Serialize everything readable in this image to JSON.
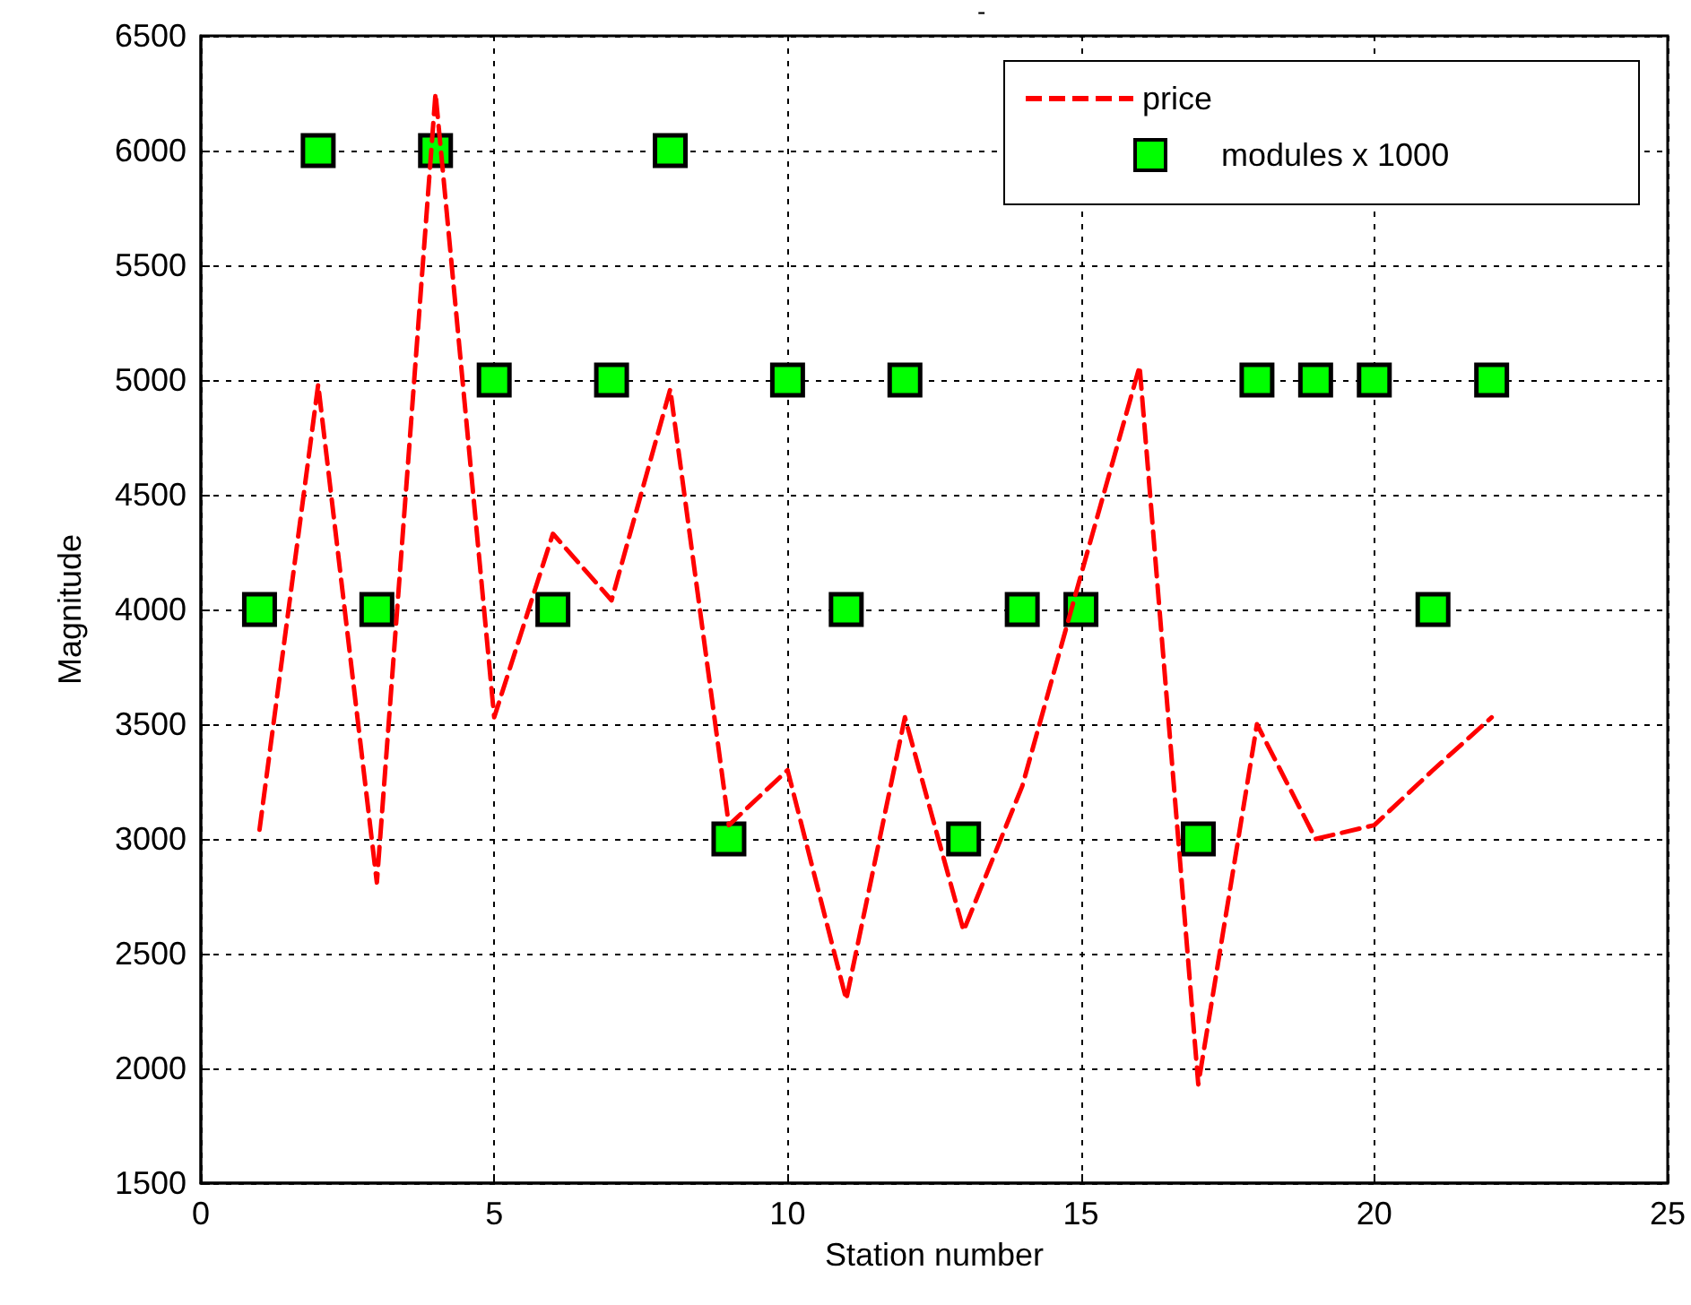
{
  "chart_data": {
    "type": "line",
    "title": "-",
    "xlabel": "Station number",
    "ylabel": "Magnitude",
    "x": [
      1,
      2,
      3,
      4,
      5,
      6,
      7,
      8,
      9,
      10,
      11,
      12,
      13,
      14,
      15,
      16,
      17,
      18,
      19,
      20,
      21,
      22
    ],
    "series": [
      {
        "name": "price",
        "color": "#ff0000",
        "line_style": "dashed",
        "marker": "none",
        "values": [
          3040,
          4980,
          2810,
          6250,
          3530,
          4330,
          4040,
          4960,
          3060,
          3300,
          2300,
          3530,
          2600,
          3230,
          4150,
          5060,
          1930,
          3500,
          3000,
          3060,
          3300,
          3530
        ]
      },
      {
        "name": "modules x 1000",
        "type": "scatter",
        "color": "#00ff00",
        "marker": "square",
        "values": [
          4000,
          6000,
          4000,
          6000,
          5000,
          4000,
          5000,
          6000,
          3000,
          5000,
          4000,
          5000,
          3000,
          4000,
          4000,
          null,
          3000,
          5000,
          5000,
          5000,
          4000,
          5000
        ]
      }
    ],
    "xlim": [
      0,
      25
    ],
    "xticks": [
      0,
      5,
      10,
      15,
      20,
      25
    ],
    "ylim": [
      1500,
      6500
    ],
    "yticks": [
      1500,
      2000,
      2500,
      3000,
      3500,
      4000,
      4500,
      5000,
      5500,
      6000,
      6500
    ],
    "grid": true,
    "legend": "top right"
  }
}
